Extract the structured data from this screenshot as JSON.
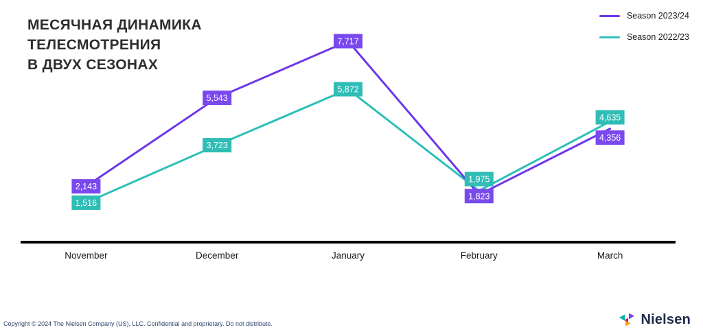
{
  "chart_data": {
    "type": "line",
    "title": "МЕСЯЧНАЯ ДИНАМИКА ТЕЛЕСМОТРЕНИЯ В ДВУХ СЕЗОНАХ",
    "title_lines": [
      "МЕСЯЧНАЯ ДИНАМИКА",
      "ТЕЛЕСМОТРЕНИЯ",
      "В ДВУХ СЕЗОНАХ"
    ],
    "categories": [
      "November",
      "December",
      "January",
      "February",
      "March"
    ],
    "series": [
      {
        "name": "Season 2023/24",
        "color": "#6C38E8",
        "label_bg": "#7A49EE",
        "values": [
          2143,
          5543,
          7717,
          1823,
          4356
        ],
        "labels": [
          "2,143",
          "5,543",
          "7,717",
          "1,823",
          "4,356"
        ]
      },
      {
        "name": "Season 2022/23",
        "color": "#2EBFB9",
        "label_bg": "#2FBDB6",
        "values": [
          1516,
          3723,
          5872,
          1975,
          4635
        ],
        "labels": [
          "1,516",
          "3,723",
          "5,872",
          "1,975",
          "4,635"
        ]
      }
    ],
    "ylim": [
      0,
      7717
    ],
    "grid": false,
    "legend_position": "top-right",
    "axis_color": "#000000",
    "xaxis_label_color": "#1a1a1a"
  },
  "footer": {
    "copyright": "Copyright © 2024 The Nielsen Company (US), LLC. Confidential and proprietary. Do not distribute.",
    "brand": "Nielsen"
  },
  "logo": {
    "triangle_colors": [
      "#00b2b1",
      "#e61e50",
      "#7d3ff0",
      "#f5a020"
    ]
  }
}
